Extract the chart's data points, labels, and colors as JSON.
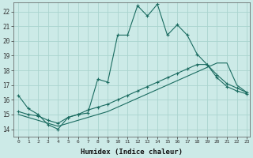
{
  "xlabel": "Humidex (Indice chaleur)",
  "background_color": "#cceae7",
  "grid_color": "#aad4cf",
  "line_color": "#1a6b60",
  "x_min": -0.5,
  "x_max": 23.3,
  "y_min": 13.5,
  "y_max": 22.6,
  "yticks": [
    14,
    15,
    16,
    17,
    18,
    19,
    20,
    21,
    22
  ],
  "xticks": [
    0,
    1,
    2,
    3,
    4,
    5,
    6,
    7,
    8,
    9,
    10,
    11,
    12,
    13,
    14,
    15,
    16,
    17,
    18,
    19,
    20,
    21,
    22,
    23
  ],
  "curve1_x": [
    0,
    1,
    2,
    3,
    4,
    5,
    6,
    7,
    8,
    9,
    10,
    11,
    12,
    13,
    14,
    15,
    16,
    17,
    18,
    19,
    20,
    21,
    22,
    23
  ],
  "curve1_y": [
    16.3,
    15.4,
    15.0,
    14.3,
    14.0,
    14.8,
    15.0,
    15.1,
    17.4,
    17.2,
    20.4,
    20.4,
    22.4,
    21.7,
    22.5,
    20.4,
    21.1,
    20.4,
    19.1,
    18.4,
    17.7,
    17.1,
    16.8,
    16.5
  ],
  "curve2_x": [
    0,
    1,
    2,
    3,
    4,
    5,
    6,
    7,
    8,
    9,
    10,
    11,
    12,
    13,
    14,
    15,
    16,
    17,
    18,
    19,
    20,
    21,
    22,
    23
  ],
  "curve2_y": [
    15.2,
    15.0,
    14.9,
    14.6,
    14.4,
    14.8,
    15.0,
    15.3,
    15.5,
    15.7,
    16.0,
    16.3,
    16.6,
    16.9,
    17.2,
    17.5,
    17.8,
    18.1,
    18.4,
    18.4,
    17.5,
    16.9,
    16.6,
    16.4
  ],
  "curve3_x": [
    0,
    1,
    2,
    3,
    4,
    5,
    6,
    7,
    8,
    9,
    10,
    11,
    12,
    13,
    14,
    15,
    16,
    17,
    18,
    19,
    20,
    21,
    22,
    23
  ],
  "curve3_y": [
    15.0,
    14.8,
    14.6,
    14.4,
    14.2,
    14.4,
    14.6,
    14.8,
    15.0,
    15.2,
    15.5,
    15.8,
    16.1,
    16.4,
    16.7,
    17.0,
    17.3,
    17.6,
    17.9,
    18.2,
    18.5,
    18.5,
    17.0,
    16.5
  ]
}
